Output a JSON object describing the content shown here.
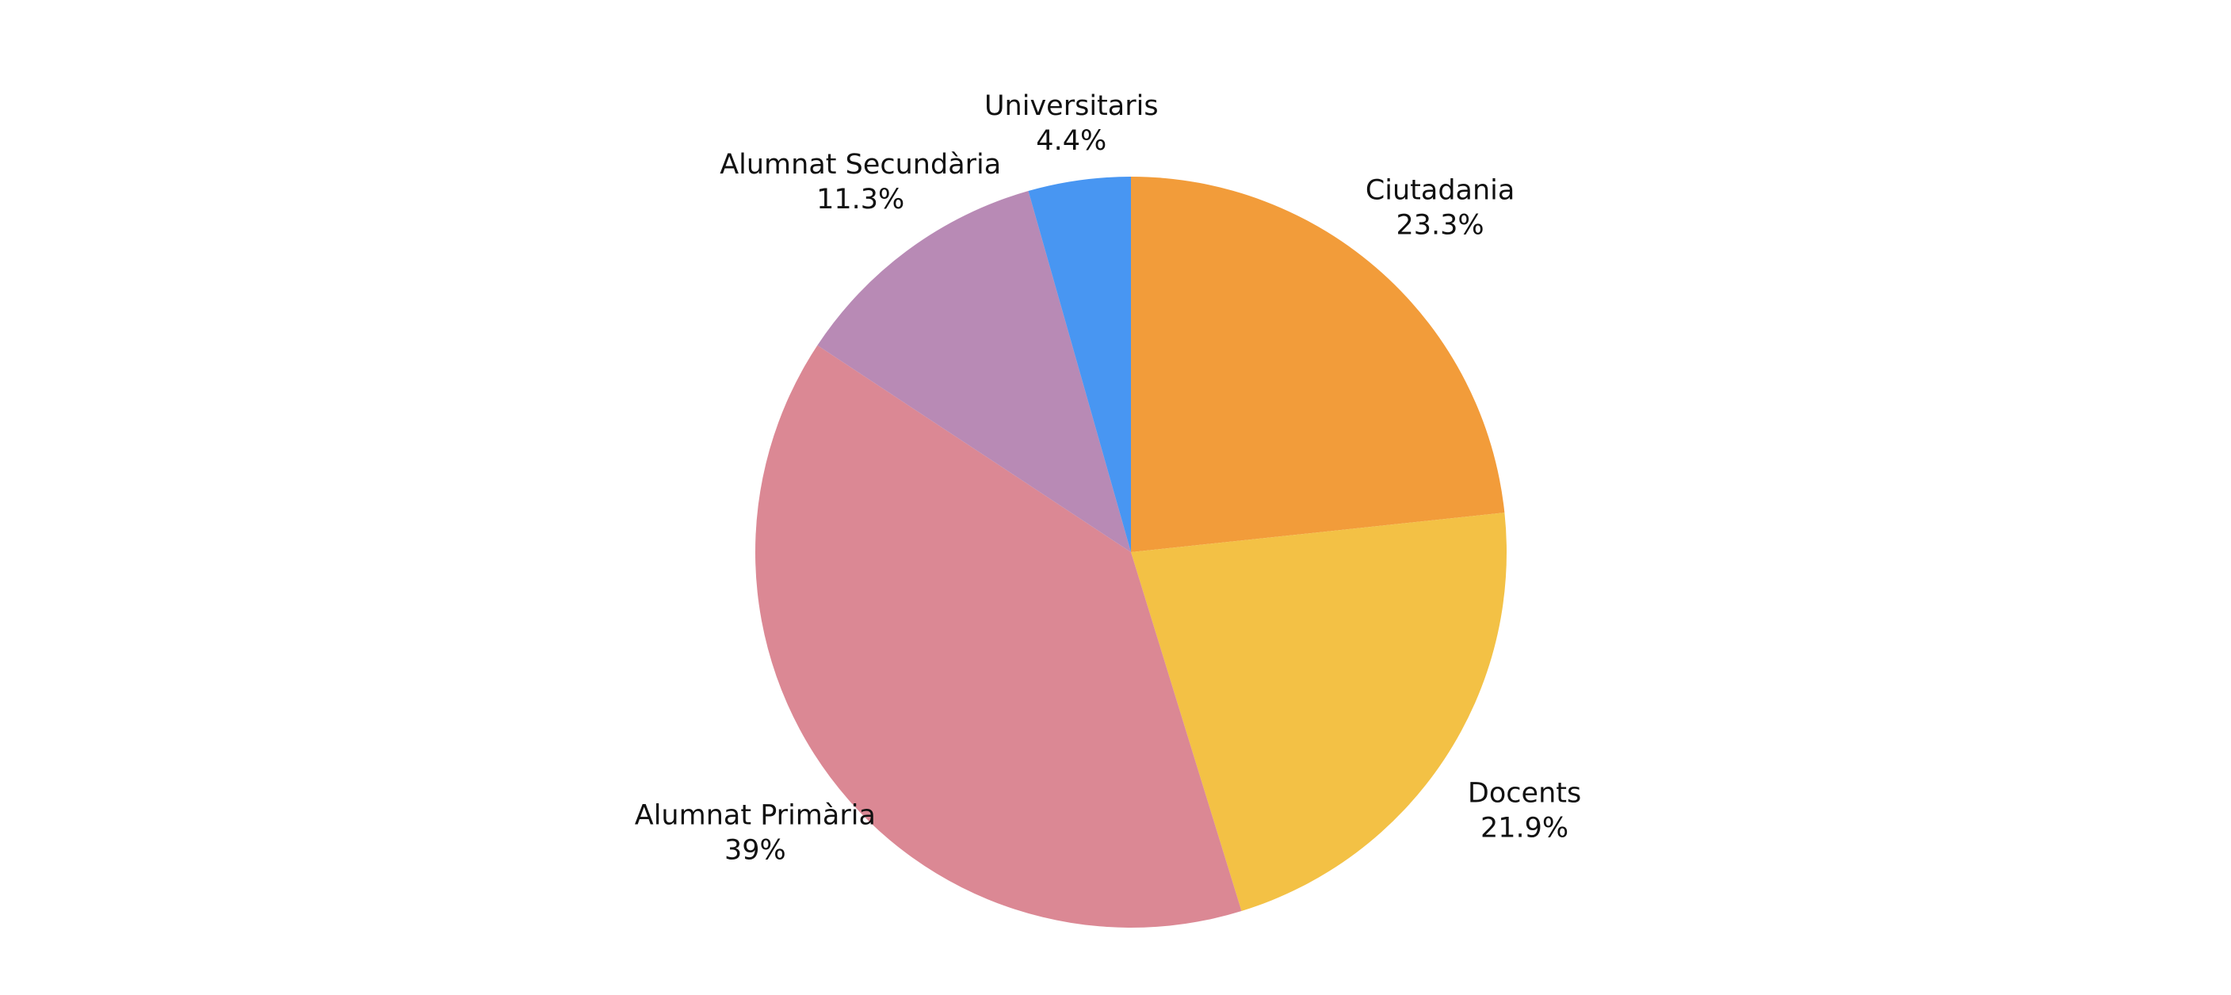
{
  "chart_data": {
    "type": "pie",
    "categories": [
      "Ciutadania",
      "Docents",
      "Alumnat Primària",
      "Alumnat Secundària",
      "Universitaris"
    ],
    "values": [
      23.3,
      21.9,
      39,
      11.3,
      4.4
    ],
    "value_labels": [
      "23.3%",
      "21.9%",
      "39%",
      "11.3%",
      "4.4%"
    ],
    "colors": [
      "#f29c3a",
      "#f3c145",
      "#db8894",
      "#b88ab5",
      "#4896f2"
    ]
  }
}
